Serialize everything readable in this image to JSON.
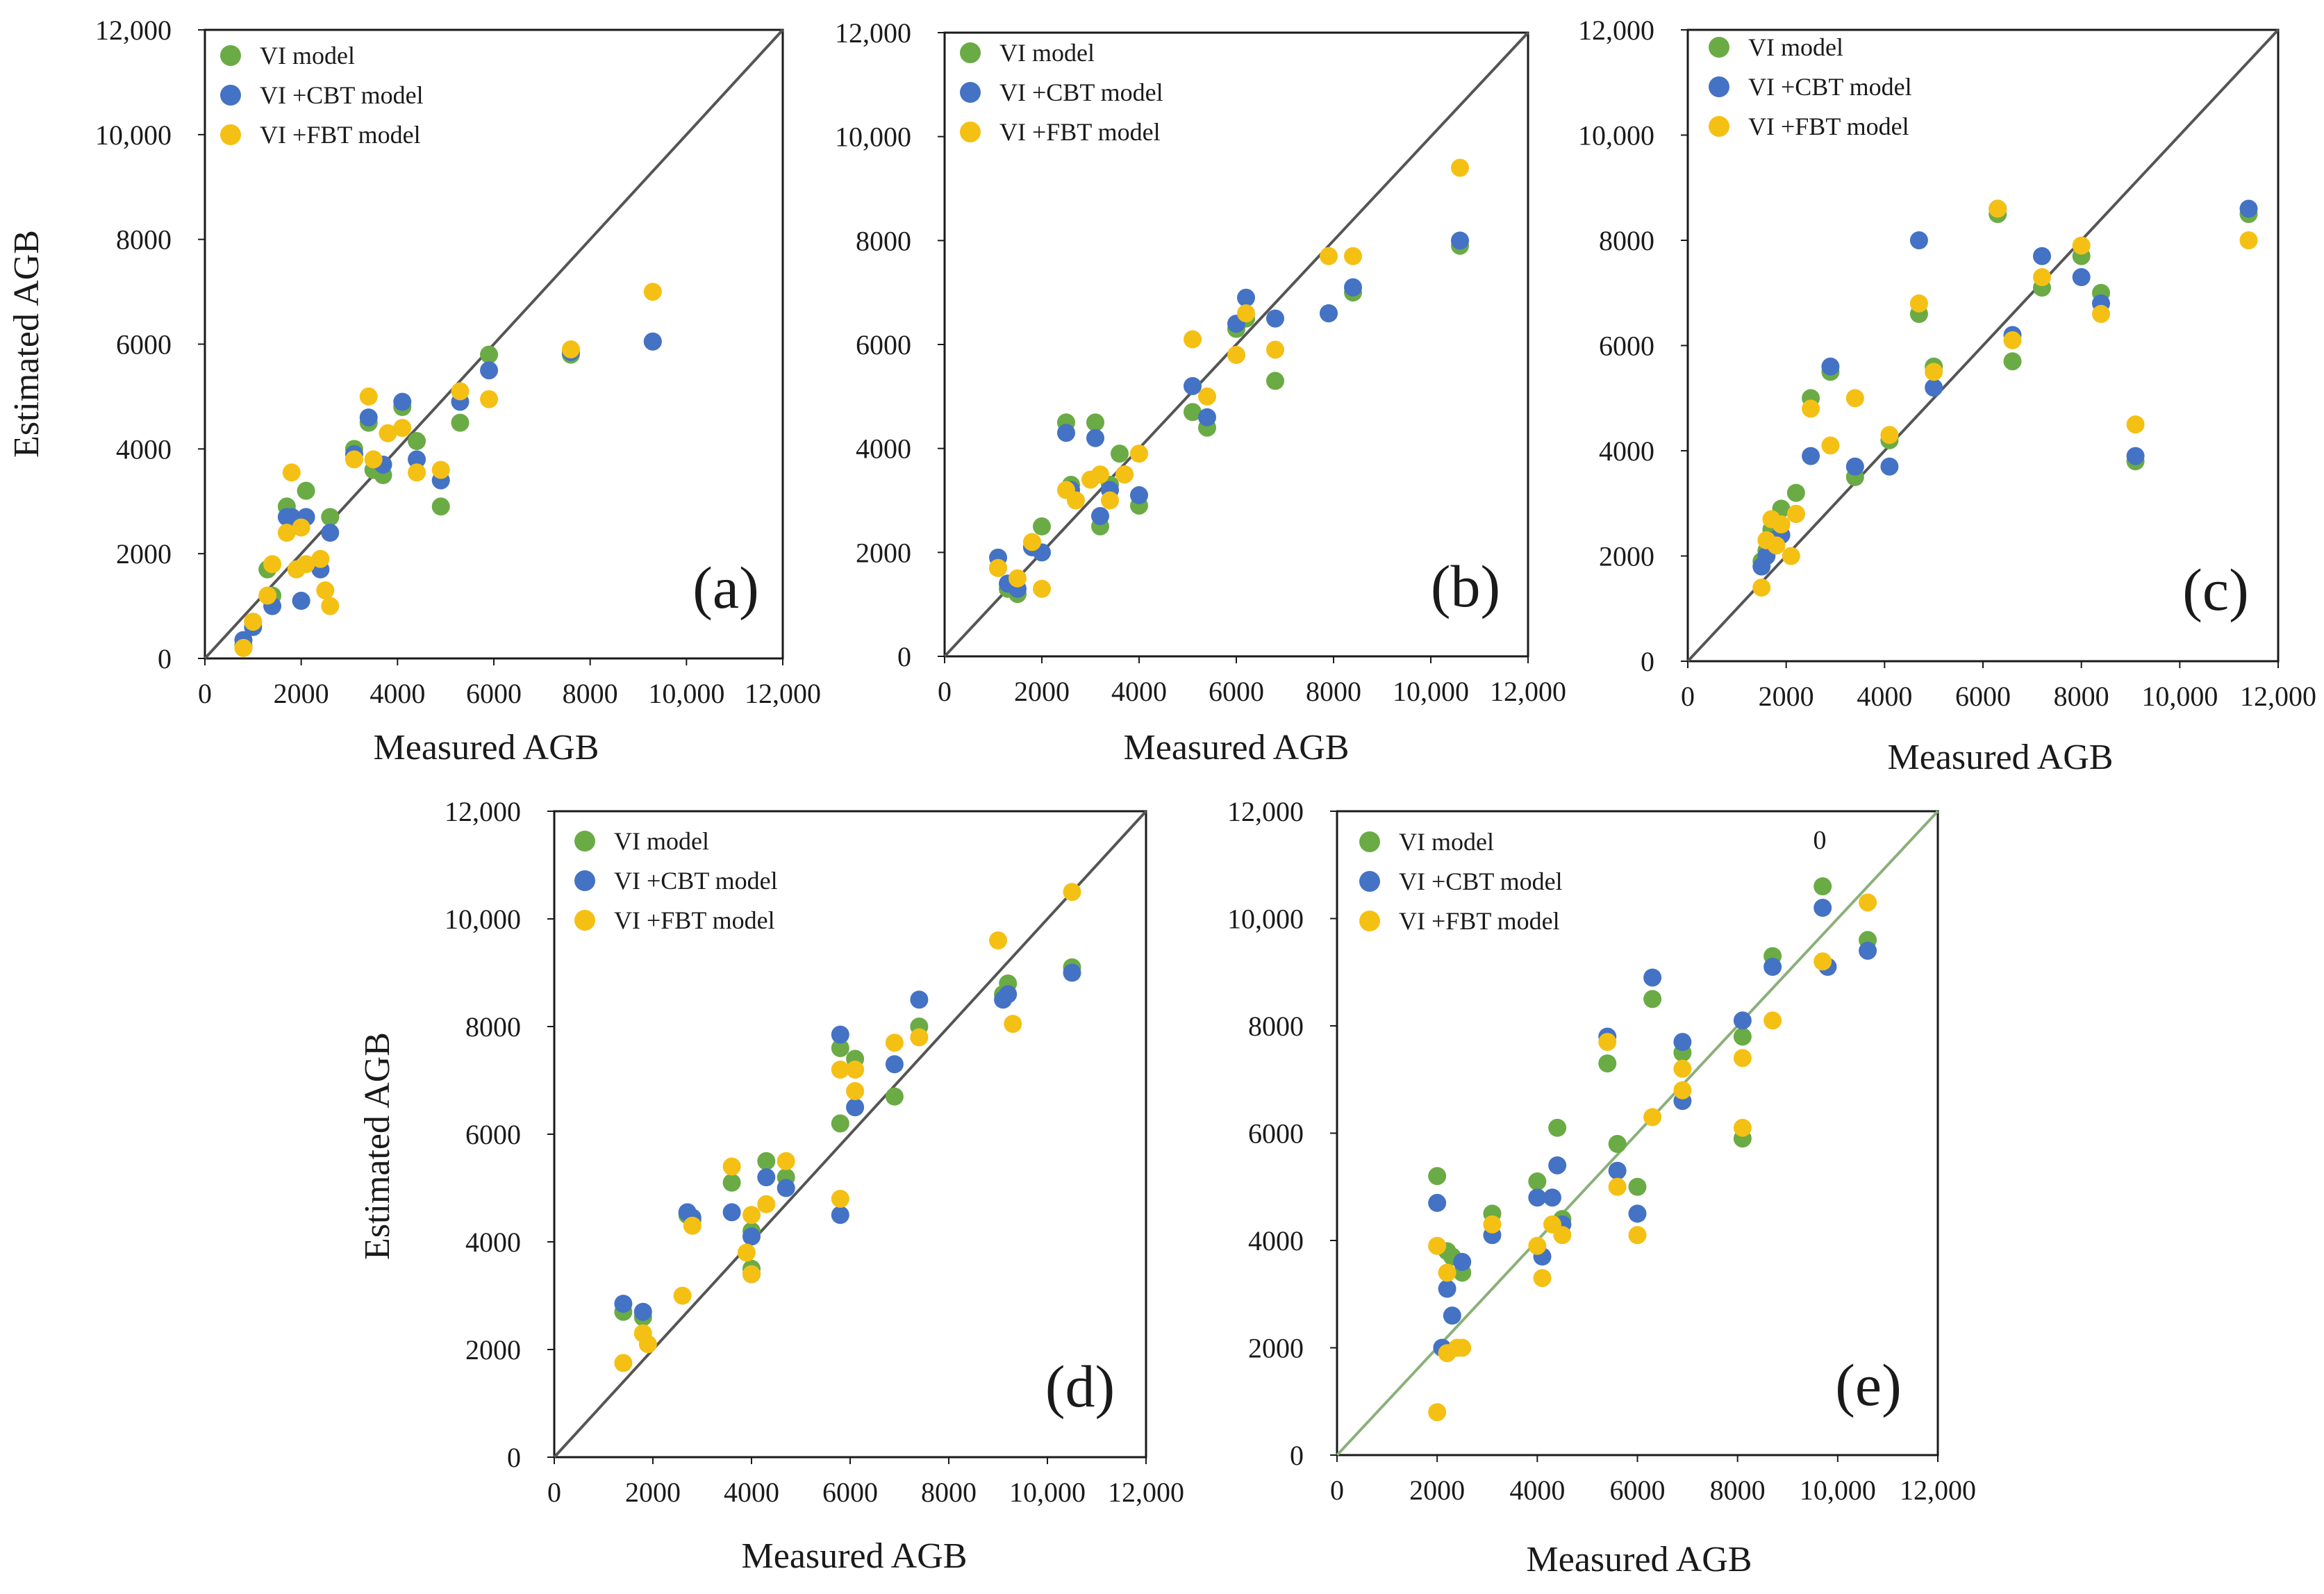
{
  "colors": {
    "vi": "#6aab45",
    "cbt": "#4472c4",
    "fbt": "#f5c014",
    "axis": "#1a1a1a",
    "diag": "#555555",
    "diag_green": "#8bb07a"
  },
  "legend": {
    "vi": "VI model",
    "cbt": "VI +CBT model",
    "fbt": "VI +FBT model"
  },
  "tick_labels": [
    "0",
    "2000",
    "4000",
    "6000",
    "8000",
    "10,000",
    "12,000"
  ],
  "chart_data": [
    {
      "type": "scatter",
      "panel": "(a)",
      "xlabel": "Measured AGB",
      "ylabel": "Estimated AGB",
      "xlim": [
        0,
        12000
      ],
      "ylim": [
        0,
        12000
      ],
      "one_to_one_line": true,
      "series": [
        {
          "name": "VI model",
          "color": "#6aab45",
          "x": [
            800,
            1000,
            1300,
            1400,
            1700,
            1800,
            2000,
            2100,
            2600,
            3100,
            3400,
            3500,
            3700,
            4100,
            4400,
            4900,
            5300,
            5900,
            7600,
            9300
          ],
          "y": [
            250,
            700,
            1700,
            1200,
            2900,
            2700,
            1100,
            3200,
            2700,
            4000,
            4500,
            3600,
            3500,
            4800,
            4150,
            2900,
            4500,
            5800,
            5800,
            6050
          ]
        },
        {
          "name": "VI +CBT model",
          "color": "#4472c4",
          "x": [
            800,
            1000,
            1400,
            1700,
            1800,
            2000,
            2100,
            2400,
            2600,
            3100,
            3400,
            3700,
            4100,
            4400,
            4900,
            5300,
            5900,
            7600,
            9300
          ],
          "y": [
            350,
            600,
            1000,
            2700,
            2700,
            1100,
            2700,
            1700,
            2400,
            3900,
            4600,
            3700,
            4900,
            3800,
            3400,
            4900,
            5500,
            5850,
            6050
          ]
        },
        {
          "name": "VI +FBT model",
          "color": "#f5c014",
          "x": [
            800,
            1000,
            1300,
            1400,
            1700,
            1800,
            1900,
            2000,
            2100,
            2400,
            2500,
            2600,
            3100,
            3400,
            3500,
            3800,
            4100,
            4400,
            4900,
            5300,
            5900,
            7600,
            9300
          ],
          "y": [
            200,
            700,
            1200,
            1800,
            2400,
            3550,
            1700,
            2500,
            1800,
            1900,
            1300,
            1000,
            3800,
            5000,
            3800,
            4300,
            4400,
            3550,
            3600,
            5100,
            4950,
            5900,
            7000
          ]
        }
      ]
    },
    {
      "type": "scatter",
      "panel": "(b)",
      "xlabel": "Measured AGB",
      "ylabel": "",
      "xlim": [
        0,
        12000
      ],
      "ylim": [
        0,
        12000
      ],
      "one_to_one_line": true,
      "series": [
        {
          "name": "VI model",
          "color": "#6aab45",
          "x": [
            1100,
            1300,
            1500,
            1800,
            2000,
            2500,
            2600,
            3100,
            3200,
            3400,
            3600,
            4000,
            5100,
            5400,
            6000,
            6200,
            6800,
            7900,
            8400,
            10600
          ],
          "y": [
            1700,
            1300,
            1200,
            2100,
            2500,
            4500,
            3300,
            4500,
            2500,
            3300,
            3900,
            2900,
            4700,
            4400,
            6300,
            6500,
            5300,
            6600,
            7000,
            7900
          ]
        },
        {
          "name": "VI +CBT model",
          "color": "#4472c4",
          "x": [
            1100,
            1300,
            1500,
            1800,
            2000,
            2500,
            2600,
            3100,
            3200,
            3400,
            3700,
            4000,
            5100,
            5400,
            6000,
            6200,
            6800,
            7900,
            8400,
            10600
          ],
          "y": [
            1900,
            1400,
            1300,
            2100,
            2000,
            4300,
            3200,
            4200,
            2700,
            3200,
            3500,
            3100,
            5200,
            4600,
            6400,
            6900,
            6500,
            6600,
            7100,
            8000
          ]
        },
        {
          "name": "VI +FBT model",
          "color": "#f5c014",
          "x": [
            1100,
            1500,
            1800,
            2000,
            2500,
            2700,
            3000,
            3200,
            3400,
            3700,
            4000,
            5100,
            5400,
            6000,
            6200,
            6800,
            7900,
            8400,
            10600
          ],
          "y": [
            1700,
            1500,
            2200,
            1300,
            3200,
            3000,
            3400,
            3500,
            3000,
            3500,
            3900,
            6100,
            5000,
            5800,
            6600,
            5900,
            7700,
            7700,
            9400
          ]
        }
      ]
    },
    {
      "type": "scatter",
      "panel": "(c)",
      "xlabel": "Measured AGB",
      "ylabel": "",
      "xlim": [
        0,
        12000
      ],
      "ylim": [
        0,
        12000
      ],
      "one_to_one_line": true,
      "series": [
        {
          "name": "VI model",
          "color": "#6aab45",
          "x": [
            1500,
            1600,
            1700,
            1900,
            2200,
            2500,
            2900,
            3400,
            4100,
            4700,
            5000,
            6300,
            6600,
            7200,
            8000,
            8400,
            9100,
            11400
          ],
          "y": [
            1900,
            2100,
            2500,
            2900,
            3200,
            5000,
            5500,
            3500,
            4200,
            6600,
            5600,
            8500,
            5700,
            7100,
            7700,
            7000,
            3800,
            8500
          ]
        },
        {
          "name": "VI +CBT model",
          "color": "#4472c4",
          "x": [
            1500,
            1600,
            1700,
            1900,
            2200,
            2500,
            2900,
            3400,
            4100,
            4700,
            5000,
            6300,
            6600,
            7200,
            8000,
            8400,
            9100,
            11400
          ],
          "y": [
            1800,
            2000,
            2300,
            2400,
            2800,
            3900,
            5600,
            3700,
            3700,
            8000,
            5200,
            8600,
            6200,
            7700,
            7300,
            6800,
            3900,
            8600
          ]
        },
        {
          "name": "VI +FBT model",
          "color": "#f5c014",
          "x": [
            1500,
            1600,
            1700,
            1800,
            1900,
            2100,
            2200,
            2500,
            2900,
            3400,
            4100,
            4700,
            5000,
            6300,
            6600,
            7200,
            8000,
            8400,
            9100,
            11400
          ],
          "y": [
            1400,
            2300,
            2700,
            2200,
            2600,
            2000,
            2800,
            4800,
            4100,
            5000,
            4300,
            6800,
            5500,
            8600,
            6100,
            7300,
            7900,
            6600,
            4500,
            8000
          ]
        }
      ]
    },
    {
      "type": "scatter",
      "panel": "(d)",
      "xlabel": "Measured AGB",
      "ylabel": "Estimated AGB",
      "xlim": [
        0,
        12000
      ],
      "ylim": [
        0,
        12000
      ],
      "one_to_one_line": true,
      "series": [
        {
          "name": "VI model",
          "color": "#6aab45",
          "x": [
            1400,
            1800,
            2700,
            2800,
            3600,
            4000,
            4000,
            4300,
            4700,
            5800,
            5800,
            6100,
            6900,
            7400,
            9100,
            9200,
            10500
          ],
          "y": [
            2700,
            2600,
            4500,
            4400,
            5100,
            3500,
            4200,
            5500,
            5200,
            7600,
            6200,
            7400,
            6700,
            8000,
            8600,
            8800,
            9100
          ]
        },
        {
          "name": "VI +CBT model",
          "color": "#4472c4",
          "x": [
            1400,
            1800,
            2700,
            2800,
            3600,
            4000,
            4000,
            4300,
            4700,
            5800,
            5800,
            6100,
            6900,
            7400,
            9100,
            9200,
            10500
          ],
          "y": [
            2850,
            2700,
            4550,
            4450,
            4550,
            3400,
            4100,
            5200,
            5000,
            7850,
            4500,
            6500,
            7300,
            8500,
            8500,
            8600,
            9000
          ]
        },
        {
          "name": "VI +FBT model",
          "color": "#f5c014",
          "x": [
            1400,
            1800,
            1900,
            2600,
            2800,
            3600,
            3900,
            4000,
            4000,
            4300,
            4700,
            5800,
            5800,
            6100,
            6100,
            6900,
            7400,
            9000,
            9300,
            10500
          ],
          "y": [
            1750,
            2300,
            2100,
            3000,
            4300,
            5400,
            3800,
            4500,
            3400,
            4700,
            5500,
            7200,
            4800,
            7200,
            6800,
            7700,
            7800,
            9600,
            8050,
            10500
          ]
        }
      ]
    },
    {
      "type": "scatter",
      "panel": "(e)",
      "xlabel": "Measured AGB",
      "ylabel": "",
      "xlim": [
        0,
        12000
      ],
      "ylim": [
        0,
        12000
      ],
      "one_to_one_line": true,
      "annotation": "0",
      "series": [
        {
          "name": "VI model",
          "color": "#6aab45",
          "x": [
            2000,
            2200,
            2300,
            2500,
            3100,
            4000,
            4400,
            4500,
            5400,
            5600,
            6000,
            6300,
            6900,
            8100,
            8100,
            8700,
            9700,
            10600
          ],
          "y": [
            5200,
            3800,
            3700,
            3400,
            4500,
            5100,
            6100,
            4400,
            7300,
            5800,
            5000,
            8500,
            7500,
            5900,
            7800,
            9300,
            10600,
            9600
          ]
        },
        {
          "name": "VI +CBT model",
          "color": "#4472c4",
          "x": [
            2000,
            2100,
            2200,
            2300,
            2500,
            3100,
            4000,
            4100,
            4300,
            4400,
            4500,
            5400,
            5600,
            6000,
            6300,
            6900,
            6900,
            8100,
            8700,
            9700,
            9800,
            10600
          ],
          "y": [
            4700,
            2000,
            3100,
            2600,
            3600,
            4100,
            4800,
            3700,
            4800,
            5400,
            4300,
            7800,
            5300,
            4500,
            8900,
            7700,
            6600,
            8100,
            9100,
            10200,
            9100,
            9400
          ]
        },
        {
          "name": "VI +FBT model",
          "color": "#f5c014",
          "x": [
            2000,
            2000,
            2200,
            2200,
            2400,
            2500,
            3100,
            4000,
            4100,
            4300,
            4500,
            5400,
            5600,
            6000,
            6300,
            6900,
            6900,
            8100,
            8100,
            8700,
            9700,
            10600
          ],
          "y": [
            800,
            3900,
            1900,
            3400,
            2000,
            2000,
            4300,
            3900,
            3300,
            4300,
            4100,
            7700,
            5000,
            4100,
            6300,
            7200,
            6800,
            7400,
            6100,
            8100,
            9200,
            10300
          ]
        }
      ]
    }
  ]
}
